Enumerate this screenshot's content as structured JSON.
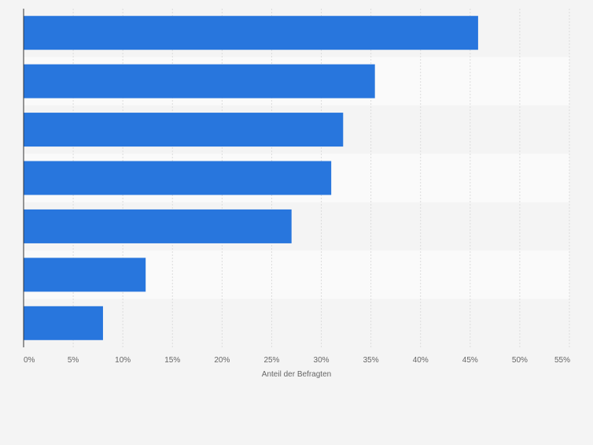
{
  "chart_data": {
    "type": "bar",
    "orientation": "horizontal",
    "title": "",
    "xlabel": "Anteil der Befragten",
    "ylabel": "",
    "categories": [
      "",
      "",
      "",
      "",
      "",
      "",
      ""
    ],
    "values": [
      45.8,
      35.4,
      32.2,
      31.0,
      27.0,
      12.3,
      8.0
    ],
    "xlim": [
      0,
      55
    ],
    "xticks": [
      "0%",
      "5%",
      "10%",
      "15%",
      "20%",
      "25%",
      "30%",
      "35%",
      "40%",
      "45%",
      "50%",
      "55%"
    ],
    "grid": true,
    "legend": "none"
  },
  "colors": {
    "bar": "#2876dd",
    "background": "#f4f4f4",
    "band_light": "#fafafa",
    "band_dark": "#f4f4f4",
    "gridline": "#dcdcdc",
    "axis": "#333333",
    "tick_text": "#666666"
  }
}
